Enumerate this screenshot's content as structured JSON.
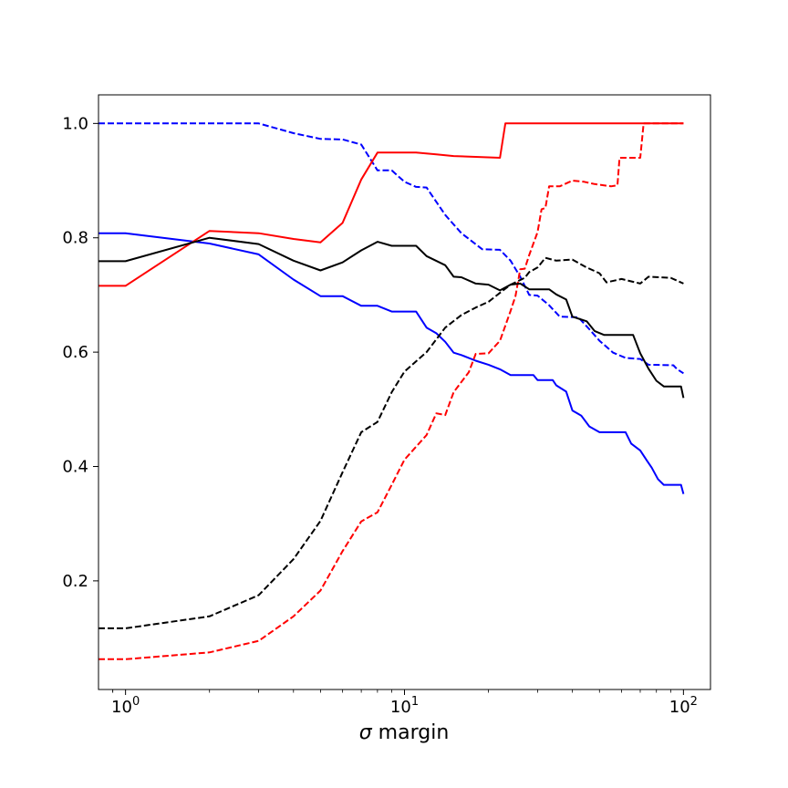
{
  "chart_data": {
    "type": "line",
    "xscale": "log",
    "xlim": [
      0.8,
      125
    ],
    "ylim": [
      0.01,
      1.05
    ],
    "xlabel_symbol": "σ",
    "xlabel_text": " margin",
    "ylabel": "",
    "title": "",
    "grid": false,
    "legend": "none",
    "xticks": [
      {
        "value": 1,
        "base": "10",
        "exp": "0"
      },
      {
        "value": 10,
        "base": "10",
        "exp": "1"
      },
      {
        "value": 100,
        "base": "10",
        "exp": "2"
      }
    ],
    "yticks": [
      {
        "value": 0.2,
        "label": "0.2"
      },
      {
        "value": 0.4,
        "label": "0.4"
      },
      {
        "value": 0.6,
        "label": "0.6"
      },
      {
        "value": 0.8,
        "label": "0.8"
      },
      {
        "value": 1.0,
        "label": "1.0"
      }
    ],
    "series": [
      {
        "color": "#0000ff",
        "dash": "solid",
        "points": [
          [
            0.8,
            0.808
          ],
          [
            1,
            0.808
          ],
          [
            2,
            0.79
          ],
          [
            3,
            0.771
          ],
          [
            4,
            0.727
          ],
          [
            5,
            0.698
          ],
          [
            6,
            0.698
          ],
          [
            7,
            0.681
          ],
          [
            8,
            0.681
          ],
          [
            9,
            0.671
          ],
          [
            11,
            0.671
          ],
          [
            12,
            0.643
          ],
          [
            13,
            0.633
          ],
          [
            14,
            0.618
          ],
          [
            15,
            0.599
          ],
          [
            16,
            0.595
          ],
          [
            18,
            0.585
          ],
          [
            20,
            0.578
          ],
          [
            22,
            0.57
          ],
          [
            24,
            0.56
          ],
          [
            29,
            0.56
          ],
          [
            30,
            0.551
          ],
          [
            34,
            0.551
          ],
          [
            35,
            0.542
          ],
          [
            38,
            0.531
          ],
          [
            40,
            0.498
          ],
          [
            43,
            0.489
          ],
          [
            46,
            0.47
          ],
          [
            50,
            0.46
          ],
          [
            62,
            0.46
          ],
          [
            65,
            0.44
          ],
          [
            70,
            0.428
          ],
          [
            74,
            0.41
          ],
          [
            77,
            0.398
          ],
          [
            81,
            0.378
          ],
          [
            85,
            0.368
          ],
          [
            98,
            0.368
          ],
          [
            100,
            0.352
          ]
        ]
      },
      {
        "color": "#0000ff",
        "dash": "dashed",
        "points": [
          [
            0.8,
            1.0
          ],
          [
            1,
            1.0
          ],
          [
            3,
            1.0
          ],
          [
            4,
            0.983
          ],
          [
            5,
            0.973
          ],
          [
            6,
            0.972
          ],
          [
            7,
            0.963
          ],
          [
            8,
            0.918
          ],
          [
            9,
            0.918
          ],
          [
            10,
            0.898
          ],
          [
            11,
            0.889
          ],
          [
            12,
            0.888
          ],
          [
            14,
            0.84
          ],
          [
            16,
            0.808
          ],
          [
            19,
            0.78
          ],
          [
            22,
            0.779
          ],
          [
            24,
            0.76
          ],
          [
            26,
            0.732
          ],
          [
            28,
            0.7
          ],
          [
            30,
            0.699
          ],
          [
            33,
            0.682
          ],
          [
            36,
            0.662
          ],
          [
            42,
            0.661
          ],
          [
            46,
            0.64
          ],
          [
            50,
            0.62
          ],
          [
            56,
            0.599
          ],
          [
            62,
            0.59
          ],
          [
            70,
            0.588
          ],
          [
            75,
            0.578
          ],
          [
            92,
            0.577
          ],
          [
            95,
            0.57
          ],
          [
            100,
            0.563
          ]
        ]
      },
      {
        "color": "#ff0000",
        "dash": "solid",
        "points": [
          [
            0.8,
            0.716
          ],
          [
            1,
            0.716
          ],
          [
            2,
            0.812
          ],
          [
            3,
            0.808
          ],
          [
            4,
            0.798
          ],
          [
            5,
            0.792
          ],
          [
            6,
            0.826
          ],
          [
            7,
            0.902
          ],
          [
            8,
            0.949
          ],
          [
            9,
            0.949
          ],
          [
            11,
            0.949
          ],
          [
            13,
            0.946
          ],
          [
            15,
            0.943
          ],
          [
            22,
            0.94
          ],
          [
            23,
            1.0
          ],
          [
            30,
            1.0
          ],
          [
            100,
            1.0
          ]
        ]
      },
      {
        "color": "#ff0000",
        "dash": "dashed",
        "points": [
          [
            0.8,
            0.063
          ],
          [
            1,
            0.063
          ],
          [
            2,
            0.075
          ],
          [
            3,
            0.095
          ],
          [
            4,
            0.138
          ],
          [
            5,
            0.183
          ],
          [
            6,
            0.252
          ],
          [
            7,
            0.304
          ],
          [
            8,
            0.32
          ],
          [
            9,
            0.368
          ],
          [
            10,
            0.412
          ],
          [
            12,
            0.455
          ],
          [
            13,
            0.493
          ],
          [
            14,
            0.49
          ],
          [
            15,
            0.53
          ],
          [
            17,
            0.565
          ],
          [
            18,
            0.597
          ],
          [
            20,
            0.598
          ],
          [
            22,
            0.62
          ],
          [
            24,
            0.672
          ],
          [
            25,
            0.698
          ],
          [
            26,
            0.745
          ],
          [
            27,
            0.746
          ],
          [
            28,
            0.77
          ],
          [
            30,
            0.81
          ],
          [
            31,
            0.85
          ],
          [
            32,
            0.852
          ],
          [
            33,
            0.89
          ],
          [
            36,
            0.89
          ],
          [
            40,
            0.9
          ],
          [
            44,
            0.898
          ],
          [
            48,
            0.894
          ],
          [
            55,
            0.89
          ],
          [
            58,
            0.892
          ],
          [
            59,
            0.94
          ],
          [
            70,
            0.94
          ],
          [
            72,
            1.0
          ],
          [
            100,
            1.0
          ]
        ]
      },
      {
        "color": "#000000",
        "dash": "solid",
        "points": [
          [
            0.8,
            0.759
          ],
          [
            1,
            0.759
          ],
          [
            2,
            0.8
          ],
          [
            3,
            0.789
          ],
          [
            4,
            0.76
          ],
          [
            5,
            0.743
          ],
          [
            6,
            0.757
          ],
          [
            7,
            0.778
          ],
          [
            8,
            0.793
          ],
          [
            9,
            0.786
          ],
          [
            11,
            0.786
          ],
          [
            12,
            0.768
          ],
          [
            14,
            0.752
          ],
          [
            15,
            0.732
          ],
          [
            16,
            0.731
          ],
          [
            18,
            0.72
          ],
          [
            20,
            0.718
          ],
          [
            22,
            0.708
          ],
          [
            24,
            0.718
          ],
          [
            26,
            0.72
          ],
          [
            28,
            0.71
          ],
          [
            33,
            0.71
          ],
          [
            35,
            0.701
          ],
          [
            38,
            0.692
          ],
          [
            40,
            0.662
          ],
          [
            45,
            0.654
          ],
          [
            48,
            0.637
          ],
          [
            52,
            0.63
          ],
          [
            66,
            0.63
          ],
          [
            70,
            0.598
          ],
          [
            75,
            0.571
          ],
          [
            80,
            0.55
          ],
          [
            85,
            0.54
          ],
          [
            98,
            0.54
          ],
          [
            100,
            0.52
          ]
        ]
      },
      {
        "color": "#000000",
        "dash": "dashed",
        "points": [
          [
            0.8,
            0.117
          ],
          [
            1,
            0.117
          ],
          [
            2,
            0.138
          ],
          [
            3,
            0.175
          ],
          [
            4,
            0.238
          ],
          [
            5,
            0.305
          ],
          [
            6,
            0.39
          ],
          [
            7,
            0.46
          ],
          [
            8,
            0.478
          ],
          [
            9,
            0.53
          ],
          [
            10,
            0.566
          ],
          [
            12,
            0.6
          ],
          [
            14,
            0.643
          ],
          [
            16,
            0.665
          ],
          [
            18,
            0.678
          ],
          [
            20,
            0.688
          ],
          [
            24,
            0.718
          ],
          [
            27,
            0.73
          ],
          [
            28,
            0.74
          ],
          [
            30,
            0.748
          ],
          [
            32,
            0.765
          ],
          [
            35,
            0.76
          ],
          [
            40,
            0.762
          ],
          [
            45,
            0.748
          ],
          [
            50,
            0.738
          ],
          [
            53,
            0.722
          ],
          [
            60,
            0.728
          ],
          [
            70,
            0.72
          ],
          [
            75,
            0.732
          ],
          [
            90,
            0.73
          ],
          [
            100,
            0.72
          ]
        ]
      }
    ]
  }
}
